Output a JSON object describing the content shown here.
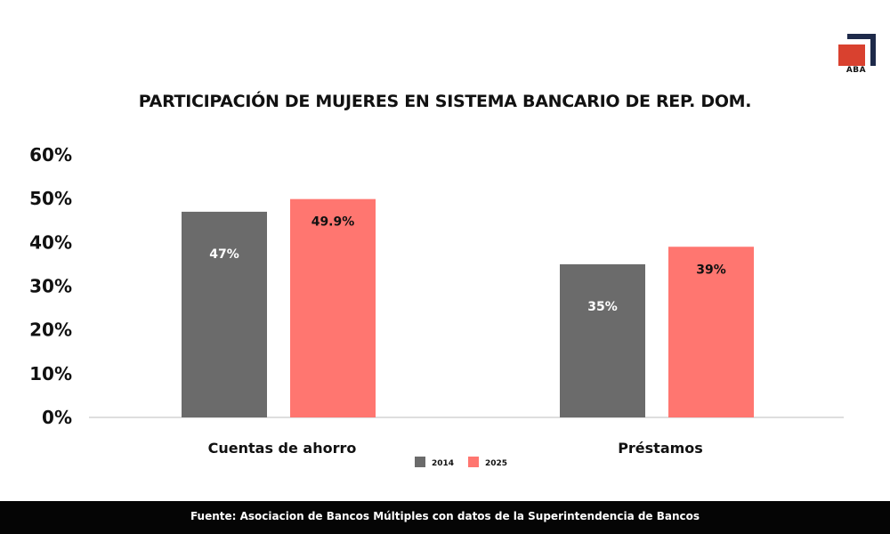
{
  "brand": {
    "logo_text": "ABA",
    "accent_color": "#d9412f",
    "logo_dark_color": "#1e2a4a"
  },
  "chart_data": {
    "type": "bar",
    "title": "PARTICIPACIÓN DE MUJERES EN SISTEMA BANCARIO DE REP. DOM.",
    "categories": [
      "Cuentas de ahorro",
      "Préstamos"
    ],
    "series": [
      {
        "name": "2014",
        "color": "#6b6b6b",
        "values": [
          47,
          35
        ],
        "labels": [
          "47%",
          "35%"
        ],
        "label_color": "#ffffff"
      },
      {
        "name": "2025",
        "color": "#ff7670",
        "values": [
          49.9,
          39
        ],
        "labels": [
          "49.9%",
          "39%"
        ],
        "label_color": "#111111"
      }
    ],
    "y_ticks": [
      "0%",
      "10%",
      "20%",
      "30%",
      "40%",
      "50%",
      "60%"
    ],
    "ylim": [
      0,
      60
    ],
    "grid": false,
    "legend": "bottom-center",
    "xlabel": "",
    "ylabel": ""
  },
  "footer": {
    "source": "Fuente: Asociacion de Bancos Múltiples con datos de la Superintendencia de Bancos"
  }
}
